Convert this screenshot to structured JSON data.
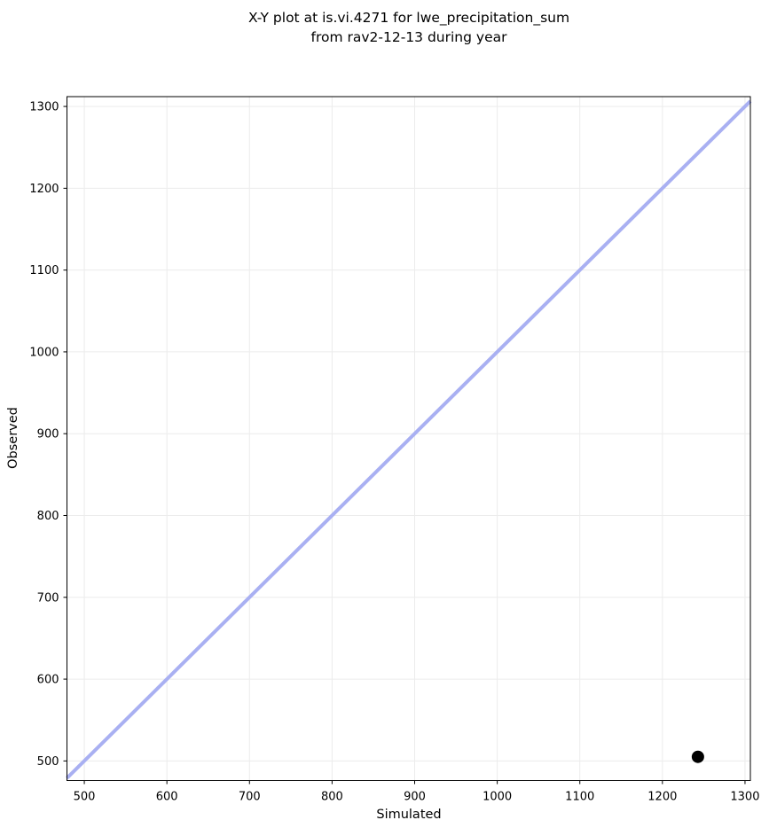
{
  "title": {
    "line1": "X-Y plot at is.vi.4271 for lwe_precipitation_sum",
    "line2": "from rav2-12-13 during year"
  },
  "chart_data": {
    "type": "scatter",
    "title": "X-Y plot at is.vi.4271 for lwe_precipitation_sum\nfrom rav2-12-13 during year",
    "xlabel": "Simulated",
    "ylabel": "Observed",
    "xlim": [
      479,
      1306.5
    ],
    "ylim": [
      476,
      1312
    ],
    "xticks": [
      500,
      600,
      700,
      800,
      900,
      1000,
      1100,
      1200,
      1300
    ],
    "yticks": [
      500,
      600,
      700,
      800,
      900,
      1000,
      1100,
      1200,
      1300
    ],
    "grid": true,
    "grid_color": "#ececec",
    "legend": "none",
    "identity_line": {
      "from": 479,
      "to": 1306.5,
      "color": "#a9b0f2",
      "width": 4
    },
    "series": [
      {
        "name": "observed-vs-simulated-points",
        "color": "#000000",
        "marker_radius": 7,
        "points": [
          {
            "x": 1243,
            "y": 505
          }
        ]
      }
    ]
  }
}
